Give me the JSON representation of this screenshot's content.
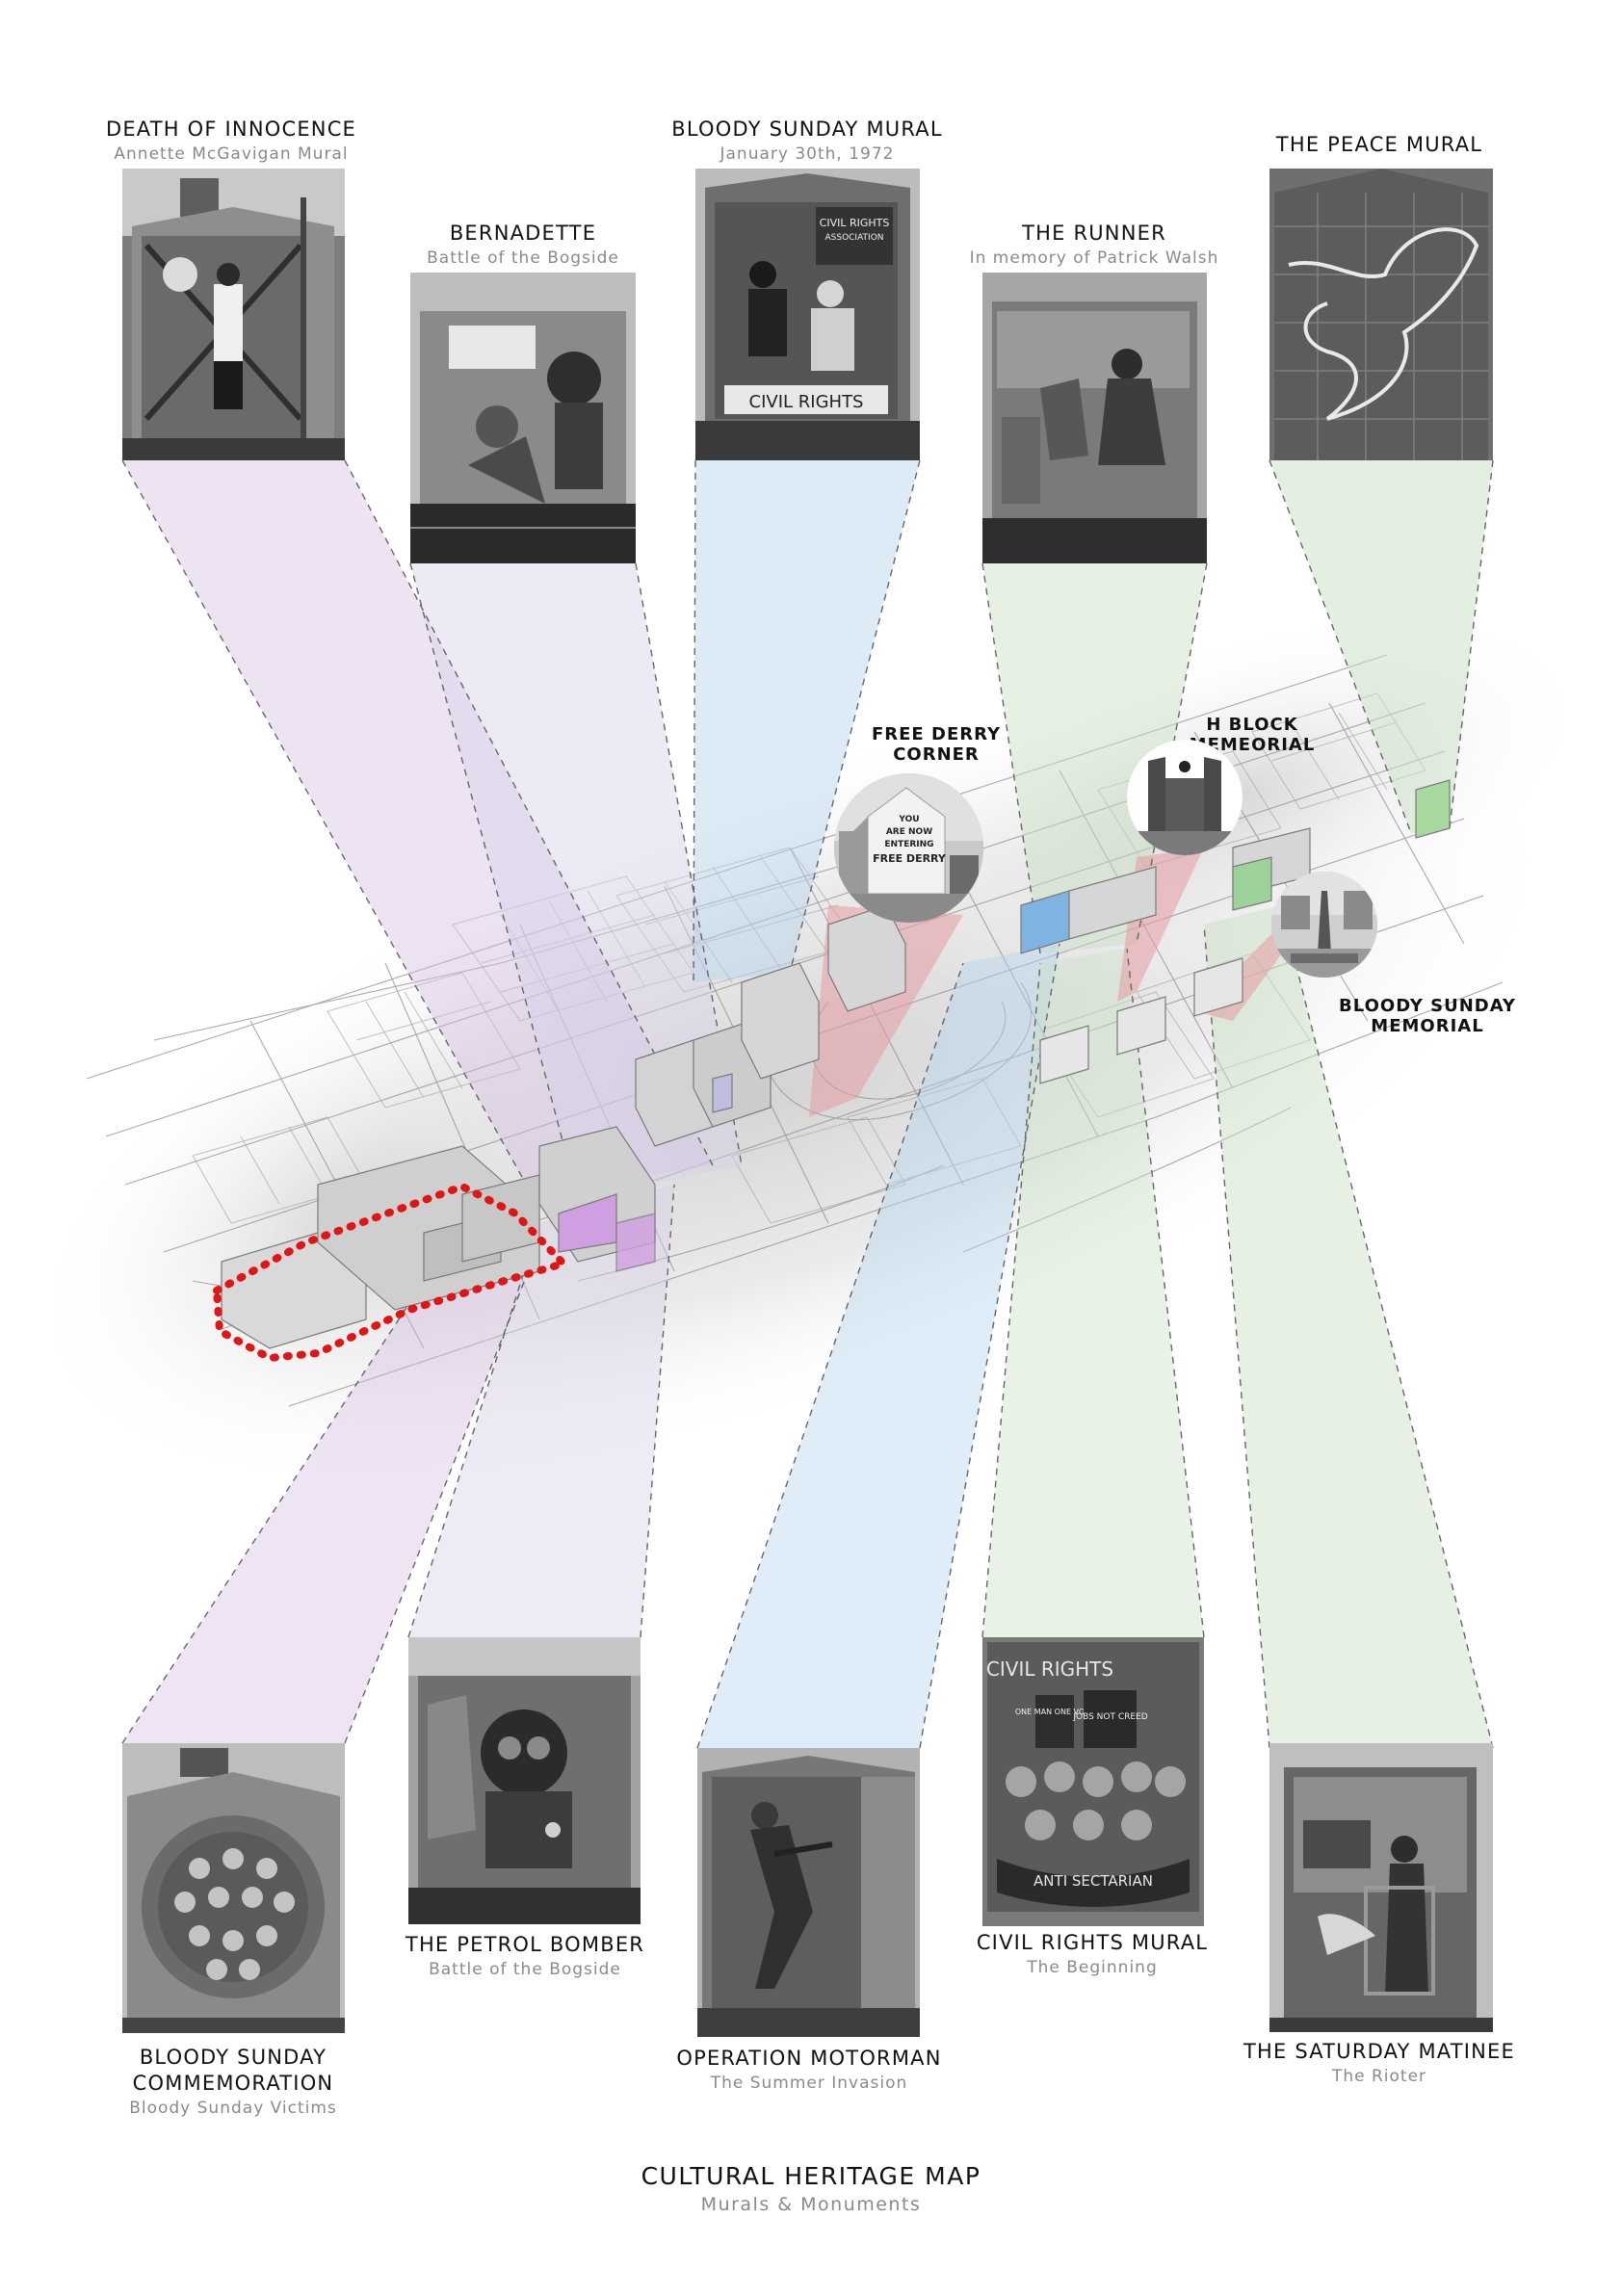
{
  "murals": {
    "death_of_innocence": {
      "title": "DEATH OF INNOCENCE",
      "subtitle": "Annette McGavigan Mural"
    },
    "bernadette": {
      "title": "BERNADETTE",
      "subtitle": "Battle of the Bogside"
    },
    "bloody_sunday_mural": {
      "title": "BLOODY SUNDAY MURAL",
      "subtitle": "January 30th, 1972",
      "photo_text_1": "CIVIL RIGHTS",
      "photo_text_2": "ASSOCIATION",
      "photo_text_3": "CIVIL RIGHTS"
    },
    "the_runner": {
      "title": "THE RUNNER",
      "subtitle": "In memory of Patrick Walsh"
    },
    "the_peace_mural": {
      "title": "THE PEACE MURAL",
      "subtitle": ""
    },
    "bloody_sunday_commemoration": {
      "title_line1": "BLOODY SUNDAY",
      "title_line2": "COMMEMORATION",
      "subtitle": "Bloody Sunday Victims"
    },
    "the_petrol_bomber": {
      "title": "THE PETROL BOMBER",
      "subtitle": "Battle of the Bogside"
    },
    "operation_motorman": {
      "title": "OPERATION MOTORMAN",
      "subtitle": "The Summer Invasion"
    },
    "civil_rights_mural": {
      "title": "CIVIL RIGHTS MURAL",
      "subtitle": "The Beginning",
      "photo_text_1": "CIVIL RIGHTS",
      "photo_text_2": "ONE MAN ONE VOTE",
      "photo_text_3": "JOBS NOT CREED",
      "photo_text_4": "ANTI SECTARIAN"
    },
    "the_saturday_matinee": {
      "title": "THE SATURDAY MATINEE",
      "subtitle": "The Rioter"
    }
  },
  "monuments": {
    "free_derry_corner": {
      "line1": "FREE DERRY",
      "line2": "CORNER",
      "wall_line1": "YOU",
      "wall_line2": "ARE NOW",
      "wall_line3": "ENTERING",
      "wall_line4": "FREE DERRY"
    },
    "h_block_memorial": {
      "line1": "H BLOCK",
      "line2": "MEMEORIAL"
    },
    "bloody_sunday_memorial": {
      "line1": "BLOODY SUNDAY",
      "line2": "MEMORIAL"
    }
  },
  "footer": {
    "title": "CULTURAL HERITAGE MAP",
    "subtitle": "Murals & Monuments"
  },
  "colors": {
    "purple": "#c9a8d9",
    "lavender": "#c7c3dd",
    "blue": "#a9cdec",
    "green": "#bcd8b6",
    "red": "#e69ba1",
    "boundary": "#e01515"
  }
}
